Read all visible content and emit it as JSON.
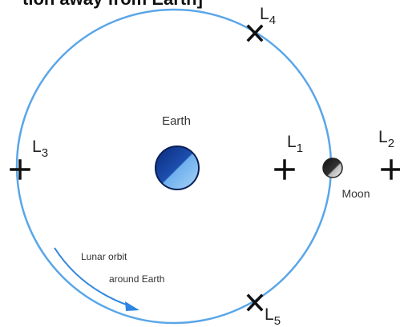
{
  "header": {
    "title": "tion away from Earth]"
  },
  "bodies": {
    "earth": "Earth",
    "moon": "Moon"
  },
  "points": [
    {
      "label": "L",
      "subscript": "4"
    },
    {
      "label": "L",
      "subscript": "3"
    },
    {
      "label": "L",
      "subscript": "1"
    },
    {
      "label": "L",
      "subscript": "2"
    },
    {
      "label": "L",
      "subscript": "5"
    }
  ],
  "orbit": {
    "line1": "Lunar orbit",
    "line2": "around Earth"
  }
}
